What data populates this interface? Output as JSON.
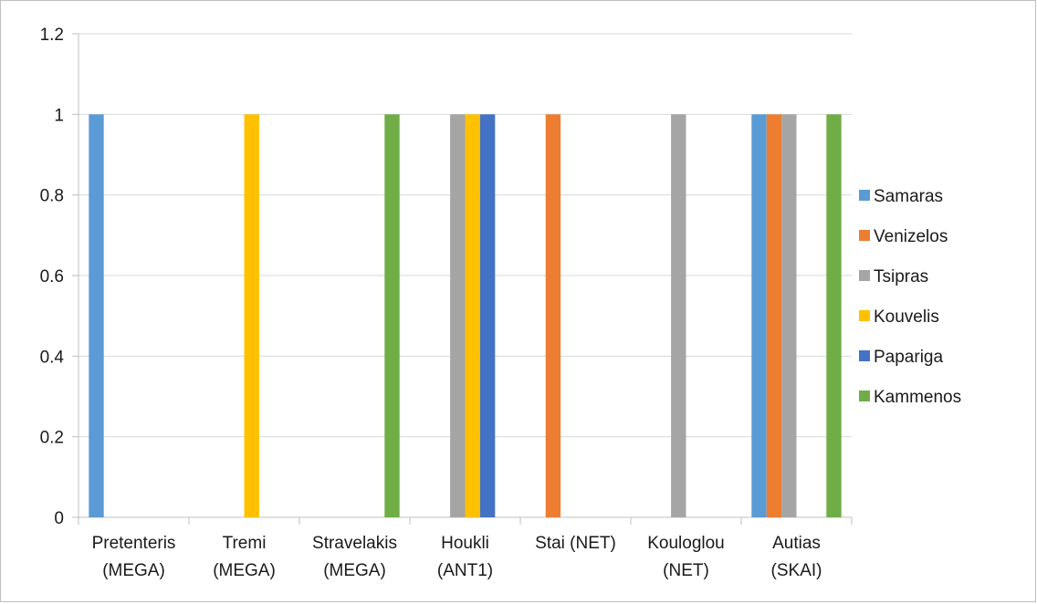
{
  "chart_data": {
    "type": "bar",
    "title": "",
    "xlabel": "",
    "ylabel": "",
    "ylim": [
      0,
      1.2
    ],
    "yticks": [
      "0",
      "0.2",
      "0.4",
      "0.6",
      "0.8",
      "1",
      "1.2"
    ],
    "ytick_values": [
      0,
      0.2,
      0.4,
      0.6,
      0.8,
      1,
      1.2
    ],
    "grid": true,
    "legend_position": "right",
    "categories": [
      [
        "Pretenteris",
        "(MEGA)"
      ],
      [
        "Tremi",
        "(MEGA)"
      ],
      [
        "Stravelakis",
        "(MEGA)"
      ],
      [
        "Houkli",
        "(ANT1)"
      ],
      [
        "Stai (NET)"
      ],
      [
        "Kouloglou",
        "(NET)"
      ],
      [
        "Autias",
        "(SKAI)"
      ]
    ],
    "series": [
      {
        "name": "Samaras",
        "color": "#5b9bd5",
        "values": [
          1,
          0,
          0,
          0,
          0,
          0,
          1
        ]
      },
      {
        "name": "Venizelos",
        "color": "#ed7d31",
        "values": [
          0,
          0,
          0,
          0,
          1,
          0,
          1
        ]
      },
      {
        "name": "Tsipras",
        "color": "#a5a5a5",
        "values": [
          0,
          0,
          0,
          1,
          0,
          1,
          1
        ]
      },
      {
        "name": "Kouvelis",
        "color": "#ffc000",
        "values": [
          0,
          1,
          0,
          1,
          0,
          0,
          0
        ]
      },
      {
        "name": "Papariga",
        "color": "#4472c4",
        "values": [
          0,
          0,
          0,
          1,
          0,
          0,
          0
        ]
      },
      {
        "name": "Kammenos",
        "color": "#70ad47",
        "values": [
          0,
          0,
          1,
          0,
          0,
          0,
          1
        ]
      }
    ]
  }
}
